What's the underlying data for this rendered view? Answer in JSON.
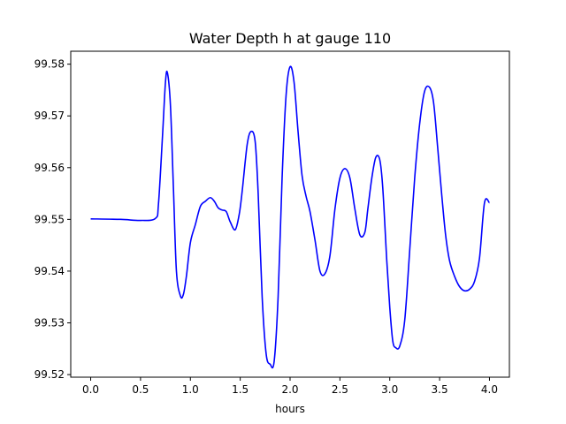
{
  "chart_data": {
    "type": "line",
    "title": "Water Depth h at gauge 110",
    "xlabel": "hours",
    "ylabel": "",
    "xlim": [
      -0.2,
      4.2
    ],
    "ylim": [
      99.5195,
      99.5825
    ],
    "xticks": [
      0.0,
      0.5,
      1.0,
      1.5,
      2.0,
      2.5,
      3.0,
      3.5,
      4.0
    ],
    "xtick_labels": [
      "0.0",
      "0.5",
      "1.0",
      "1.5",
      "2.0",
      "2.5",
      "3.0",
      "3.5",
      "4.0"
    ],
    "yticks": [
      99.52,
      99.53,
      99.54,
      99.55,
      99.56,
      99.57,
      99.58
    ],
    "ytick_labels": [
      "99.52",
      "99.53",
      "99.54",
      "99.55",
      "99.56",
      "99.57",
      "99.58"
    ],
    "grid": false,
    "colors": {
      "series": "#0000ff"
    },
    "series": [
      {
        "x": [
          0.0,
          0.3,
          0.5,
          0.65,
          0.68,
          0.72,
          0.75,
          0.77,
          0.8,
          0.83,
          0.86,
          0.9,
          0.93,
          0.96,
          1.0,
          1.05,
          1.1,
          1.15,
          1.2,
          1.24,
          1.28,
          1.32,
          1.36,
          1.4,
          1.45,
          1.49,
          1.52,
          1.57,
          1.61,
          1.65,
          1.68,
          1.72,
          1.76,
          1.8,
          1.84,
          1.88,
          1.92,
          1.96,
          2.0,
          2.04,
          2.08,
          2.12,
          2.16,
          2.2,
          2.25,
          2.3,
          2.35,
          2.4,
          2.45,
          2.5,
          2.55,
          2.6,
          2.65,
          2.7,
          2.75,
          2.78,
          2.82,
          2.86,
          2.9,
          2.93,
          2.97,
          3.0,
          3.03,
          3.06,
          3.1,
          3.15,
          3.2,
          3.25,
          3.3,
          3.35,
          3.4,
          3.44,
          3.48,
          3.52,
          3.56,
          3.6,
          3.65,
          3.7,
          3.75,
          3.8,
          3.85,
          3.9,
          3.95,
          4.0
        ],
        "y": [
          99.5501,
          99.55,
          99.5498,
          99.5502,
          99.553,
          99.566,
          99.5765,
          99.5783,
          99.572,
          99.556,
          99.54,
          99.5352,
          99.5355,
          99.539,
          99.5455,
          99.549,
          99.5525,
          99.5535,
          99.5542,
          99.5535,
          99.5522,
          99.5518,
          99.5515,
          99.5495,
          99.548,
          99.551,
          99.5555,
          99.5645,
          99.567,
          99.565,
          99.555,
          99.535,
          99.524,
          99.522,
          99.5225,
          99.535,
          99.558,
          99.574,
          99.5795,
          99.5765,
          99.567,
          99.5585,
          99.5545,
          99.5515,
          99.546,
          99.54,
          99.5395,
          99.543,
          99.552,
          99.558,
          99.5598,
          99.558,
          99.552,
          99.547,
          99.5475,
          99.552,
          99.558,
          99.562,
          99.5615,
          99.556,
          99.542,
          99.533,
          99.5265,
          99.5252,
          99.5255,
          99.5305,
          99.544,
          99.558,
          99.5685,
          99.5748,
          99.5755,
          99.5725,
          99.564,
          99.555,
          99.547,
          99.542,
          99.539,
          99.537,
          99.5362,
          99.5365,
          99.538,
          99.5425,
          99.5532,
          99.5532
        ]
      }
    ]
  }
}
